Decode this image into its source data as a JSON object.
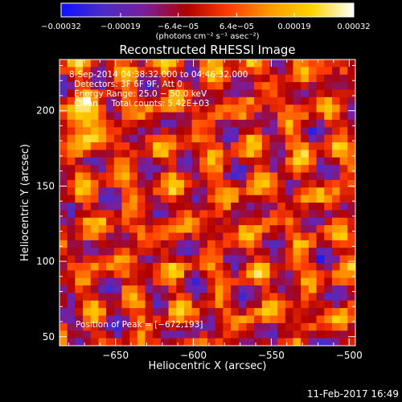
{
  "chart_data": {
    "type": "heatmap",
    "title": "Reconstructed RHESSI Image",
    "xlabel": "Heliocentric X (arcsec)",
    "ylabel": "Heliocentric Y (arcsec)",
    "xlim": [
      -686,
      -496
    ],
    "ylim": [
      44,
      234
    ],
    "xticks": [
      -650,
      -600,
      -550,
      -500
    ],
    "yticks": [
      50,
      100,
      150,
      200
    ],
    "xtick_labels": [
      "−650",
      "−600",
      "−550",
      "−500"
    ],
    "ytick_labels": [
      "50",
      "100",
      "150",
      "200"
    ],
    "grid": false,
    "colorbar": {
      "range": [
        -0.00032,
        0.00032
      ],
      "tick_values": [
        -0.00032,
        -0.00019,
        -6.4e-05,
        6.4e-05,
        0.00019,
        0.00032
      ],
      "tick_labels": [
        "−0.00032",
        "−0.00019",
        "−6.4e−05",
        "6.4e−05",
        "0.00019",
        "0.00032"
      ],
      "unit_label": "(photons cm⁻² s⁻¹ asec⁻²)",
      "colors": [
        "#1010ff",
        "#4a2cc8",
        "#7a1e9a",
        "#b00000",
        "#ff3c00",
        "#ff9a00",
        "#ffd400",
        "#ffffff"
      ]
    },
    "grid_size": 38,
    "peak": [
      -672,
      193
    ],
    "info_lines": [
      "8-Sep-2014 04:38:32.000 to 04:46:32.000",
      "Detectors: 3F 6F 9F, Att 0",
      "Energy Range: 25.0 − 50.0 keV",
      "Clean     Total counts: 5.42E+03"
    ],
    "peak_label": "Position of Peak = [−672,193]"
  },
  "footer": {
    "timestamp": "11-Feb-2017 16:49"
  }
}
